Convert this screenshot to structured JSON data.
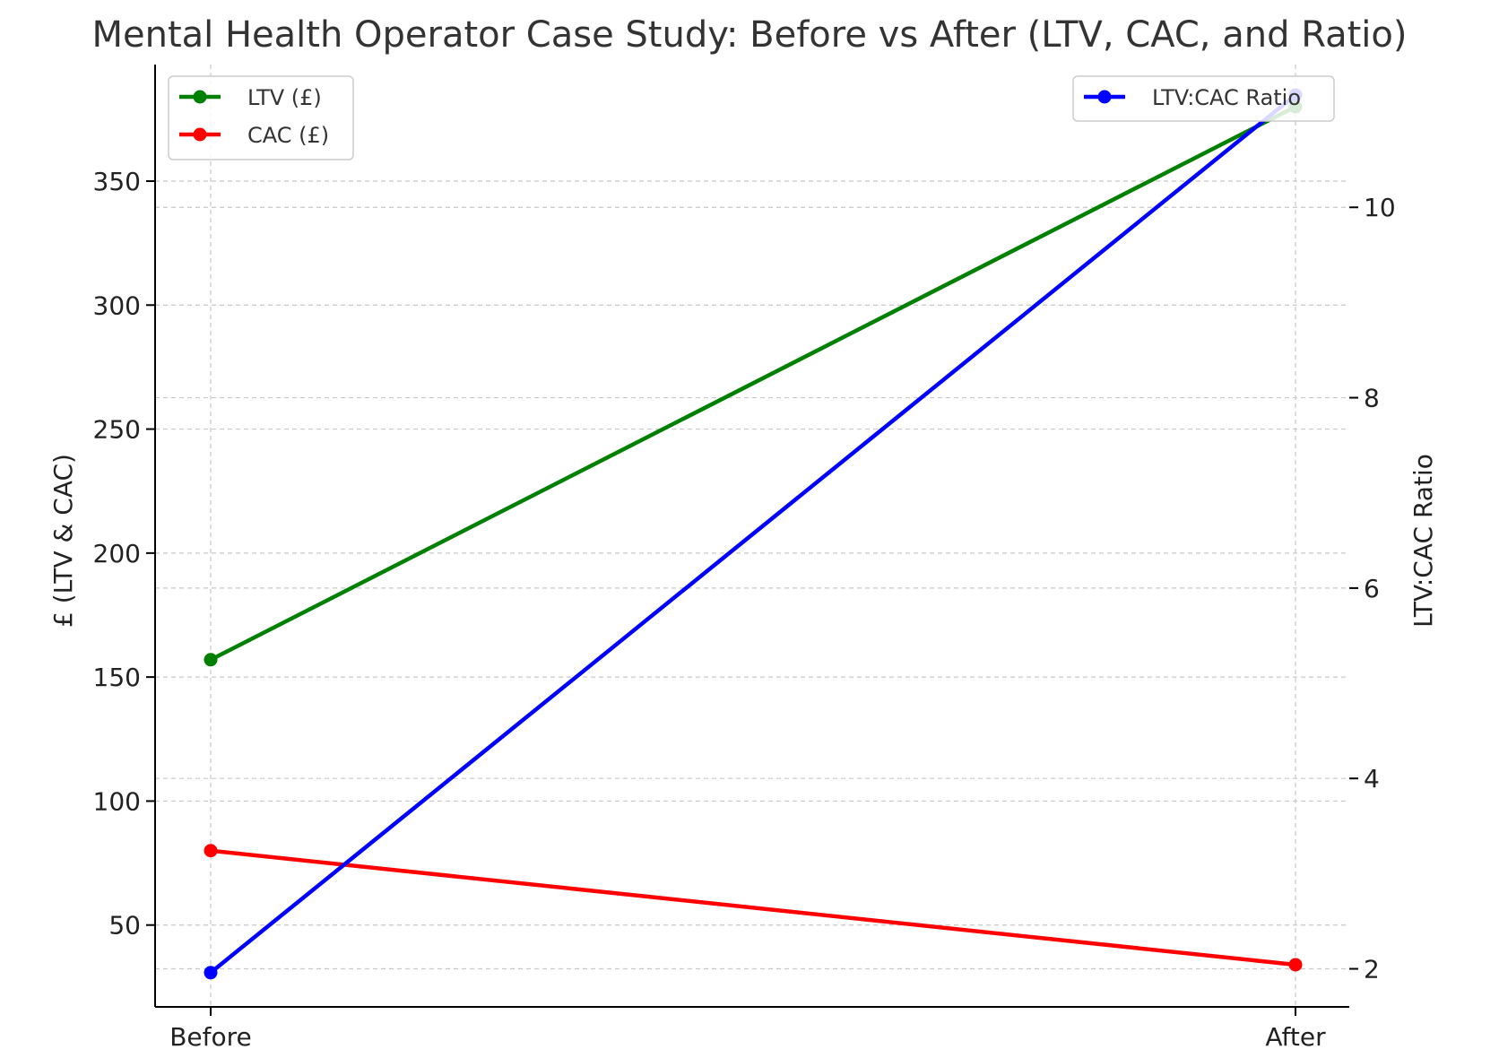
{
  "chart_data": {
    "type": "line",
    "title": "Mental Health Operator Case Study: Before vs After (LTV, CAC, and Ratio)",
    "xlabel": "",
    "ylabel_left": "£ (LTV & CAC)",
    "ylabel_right": "LTV:CAC Ratio",
    "categories": [
      "Before",
      "After"
    ],
    "ylim_left": [
      17,
      397
    ],
    "yticks_left": [
      50,
      100,
      150,
      200,
      250,
      300,
      350
    ],
    "ylim_right": [
      1.6,
      11.5
    ],
    "yticks_right": [
      2,
      4,
      6,
      8,
      10
    ],
    "grid": true,
    "legend_left_placement": "top-left",
    "legend_right_placement": "top-right",
    "series": [
      {
        "name": "LTV (£)",
        "axis": "left",
        "color": "#008000",
        "values": [
          157,
          380
        ]
      },
      {
        "name": "CAC (£)",
        "axis": "left",
        "color": "#ff0000",
        "values": [
          80,
          34
        ]
      },
      {
        "name": "LTV:CAC Ratio",
        "axis": "right",
        "color": "#0000ff",
        "values": [
          1.96,
          11.18
        ]
      }
    ]
  }
}
